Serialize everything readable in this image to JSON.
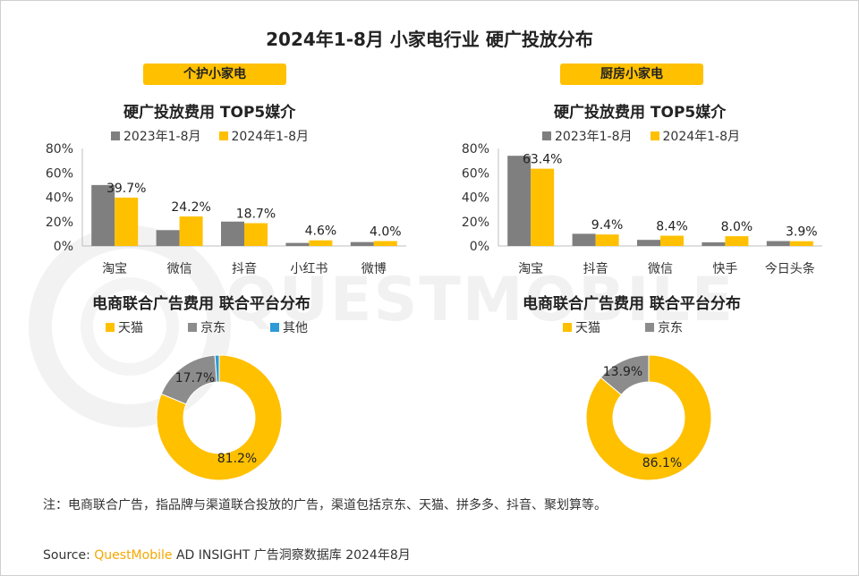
{
  "title": "2024年1-8月 小家电行业 硬广投放分布",
  "colors": {
    "y2023": "#7f7f7f",
    "y2024": "#ffc000",
    "tmall": "#ffc000",
    "jd": "#8c8c8c",
    "other": "#2e9bd6"
  },
  "watermark": "QUESTMOBILE",
  "left": {
    "tag": "个护小家电",
    "bar_title": "硬广投放费用 TOP5媒介",
    "legend": [
      "2023年1-8月",
      "2024年1-8月"
    ],
    "donut_title": "电商联合广告费用 联合平台分布",
    "donut_legend": [
      "天猫",
      "京东",
      "其他"
    ]
  },
  "right": {
    "tag": "厨房小家电",
    "bar_title": "硬广投放费用 TOP5媒介",
    "legend": [
      "2023年1-8月",
      "2024年1-8月"
    ],
    "donut_title": "电商联合广告费用 联合平台分布",
    "donut_legend": [
      "天猫",
      "京东"
    ]
  },
  "chart_data": [
    {
      "type": "bar",
      "title": "硬广投放费用 TOP5媒介",
      "categories": [
        "淘宝",
        "微信",
        "抖音",
        "小红书",
        "微博"
      ],
      "series": [
        {
          "name": "2023年1-8月",
          "values": [
            50,
            13,
            20,
            2.5,
            3.2
          ]
        },
        {
          "name": "2024年1-8月",
          "values": [
            39.7,
            24.2,
            18.7,
            4.6,
            4.0
          ]
        }
      ],
      "labels": [
        "39.7%",
        "24.2%",
        "18.7%",
        "4.6%",
        "4.0%"
      ],
      "yticks": [
        "0%",
        "20%",
        "40%",
        "60%",
        "80%"
      ],
      "ylim": [
        0,
        80
      ]
    },
    {
      "type": "bar",
      "title": "硬广投放费用 TOP5媒介",
      "categories": [
        "淘宝",
        "抖音",
        "微信",
        "快手",
        "今日头条"
      ],
      "series": [
        {
          "name": "2023年1-8月",
          "values": [
            74,
            10,
            5,
            3,
            4
          ]
        },
        {
          "name": "2024年1-8月",
          "values": [
            63.4,
            9.4,
            8.4,
            8.0,
            3.9
          ]
        }
      ],
      "labels": [
        "63.4%",
        "9.4%",
        "8.4%",
        "8.0%",
        "3.9%"
      ],
      "yticks": [
        "0%",
        "20%",
        "40%",
        "60%",
        "80%"
      ],
      "ylim": [
        0,
        80
      ]
    },
    {
      "type": "pie",
      "title": "电商联合广告费用 联合平台分布",
      "slices": [
        {
          "name": "天猫",
          "value": 81.2,
          "label": "81.2%"
        },
        {
          "name": "京东",
          "value": 17.7,
          "label": "17.7%"
        },
        {
          "name": "其他",
          "value": 1.1,
          "label": ""
        }
      ]
    },
    {
      "type": "pie",
      "title": "电商联合广告费用 联合平台分布",
      "slices": [
        {
          "name": "天猫",
          "value": 86.1,
          "label": "86.1%"
        },
        {
          "name": "京东",
          "value": 13.9,
          "label": "13.9%"
        }
      ]
    }
  ],
  "note": "注：电商联合广告，指品牌与渠道联合投放的广告，渠道包括京东、天猫、拼多多、抖音、聚划算等。",
  "source": {
    "prefix": "Source:",
    "brand": "QuestMobile",
    "rest": "AD INSIGHT 广告洞察数据库 2024年8月"
  }
}
